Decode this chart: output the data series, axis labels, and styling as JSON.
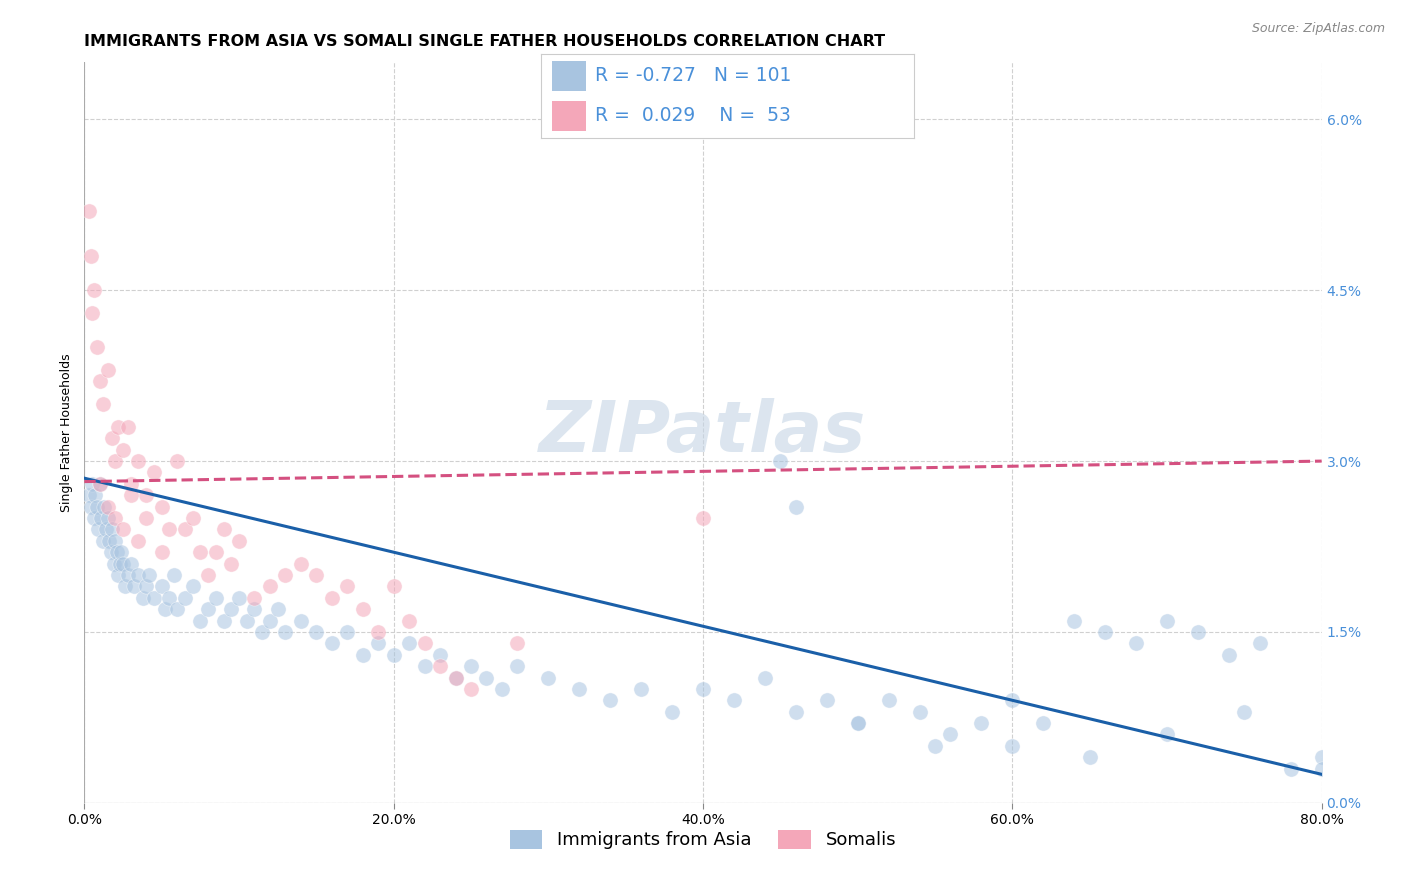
{
  "title": "IMMIGRANTS FROM ASIA VS SOMALI SINGLE FATHER HOUSEHOLDS CORRELATION CHART",
  "source": "Source: ZipAtlas.com",
  "ylabel_label": "Single Father Households",
  "legend_items": [
    {
      "label": "Immigrants from Asia",
      "color": "#a8c4e0",
      "R": "-0.727",
      "N": "101"
    },
    {
      "label": "Somalis",
      "color": "#f4a7b9",
      "R": "0.029",
      "N": "53"
    }
  ],
  "watermark": "ZIPatlas",
  "blue_scatter_x": [
    0.3,
    0.4,
    0.5,
    0.6,
    0.7,
    0.8,
    0.9,
    1.0,
    1.1,
    1.2,
    1.3,
    1.4,
    1.5,
    1.6,
    1.7,
    1.8,
    1.9,
    2.0,
    2.1,
    2.2,
    2.3,
    2.4,
    2.5,
    2.6,
    2.8,
    3.0,
    3.2,
    3.5,
    3.8,
    4.0,
    4.2,
    4.5,
    5.0,
    5.2,
    5.5,
    5.8,
    6.0,
    6.5,
    7.0,
    7.5,
    8.0,
    8.5,
    9.0,
    9.5,
    10.0,
    10.5,
    11.0,
    11.5,
    12.0,
    12.5,
    13.0,
    14.0,
    15.0,
    16.0,
    17.0,
    18.0,
    19.0,
    20.0,
    21.0,
    22.0,
    23.0,
    24.0,
    25.0,
    26.0,
    27.0,
    28.0,
    30.0,
    32.0,
    34.0,
    36.0,
    38.0,
    40.0,
    42.0,
    44.0,
    46.0,
    48.0,
    50.0,
    52.0,
    54.0,
    56.0,
    58.0,
    60.0,
    62.0,
    64.0,
    66.0,
    68.0,
    70.0,
    72.0,
    74.0,
    76.0,
    78.0,
    80.0,
    45.0,
    50.0,
    55.0,
    60.0,
    65.0,
    70.0,
    75.0,
    80.0,
    46.0
  ],
  "blue_scatter_y": [
    2.7,
    2.6,
    2.8,
    2.5,
    2.7,
    2.6,
    2.4,
    2.8,
    2.5,
    2.3,
    2.6,
    2.4,
    2.5,
    2.3,
    2.2,
    2.4,
    2.1,
    2.3,
    2.2,
    2.0,
    2.1,
    2.2,
    2.1,
    1.9,
    2.0,
    2.1,
    1.9,
    2.0,
    1.8,
    1.9,
    2.0,
    1.8,
    1.9,
    1.7,
    1.8,
    2.0,
    1.7,
    1.8,
    1.9,
    1.6,
    1.7,
    1.8,
    1.6,
    1.7,
    1.8,
    1.6,
    1.7,
    1.5,
    1.6,
    1.7,
    1.5,
    1.6,
    1.5,
    1.4,
    1.5,
    1.3,
    1.4,
    1.3,
    1.4,
    1.2,
    1.3,
    1.1,
    1.2,
    1.1,
    1.0,
    1.2,
    1.1,
    1.0,
    0.9,
    1.0,
    0.8,
    1.0,
    0.9,
    1.1,
    0.8,
    0.9,
    0.7,
    0.9,
    0.8,
    0.6,
    0.7,
    0.5,
    0.7,
    1.6,
    1.5,
    1.4,
    1.6,
    1.5,
    1.3,
    1.4,
    0.3,
    0.4,
    3.0,
    0.7,
    0.5,
    0.9,
    0.4,
    0.6,
    0.8,
    0.3,
    2.6
  ],
  "pink_scatter_x": [
    0.3,
    0.4,
    0.5,
    0.6,
    0.8,
    1.0,
    1.2,
    1.5,
    1.8,
    2.0,
    2.2,
    2.5,
    2.8,
    3.0,
    3.5,
    4.0,
    4.5,
    5.0,
    5.5,
    6.0,
    6.5,
    7.0,
    7.5,
    8.0,
    8.5,
    9.0,
    9.5,
    10.0,
    11.0,
    12.0,
    13.0,
    14.0,
    15.0,
    16.0,
    17.0,
    18.0,
    19.0,
    20.0,
    21.0,
    22.0,
    23.0,
    24.0,
    25.0,
    1.0,
    1.5,
    2.0,
    2.5,
    3.0,
    3.5,
    4.0,
    5.0,
    28.0,
    40.0
  ],
  "pink_scatter_y": [
    5.2,
    4.8,
    4.3,
    4.5,
    4.0,
    3.7,
    3.5,
    3.8,
    3.2,
    3.0,
    3.3,
    3.1,
    3.3,
    2.8,
    3.0,
    2.7,
    2.9,
    2.6,
    2.4,
    3.0,
    2.4,
    2.5,
    2.2,
    2.0,
    2.2,
    2.4,
    2.1,
    2.3,
    1.8,
    1.9,
    2.0,
    2.1,
    2.0,
    1.8,
    1.9,
    1.7,
    1.5,
    1.9,
    1.6,
    1.4,
    1.2,
    1.1,
    1.0,
    2.8,
    2.6,
    2.5,
    2.4,
    2.7,
    2.3,
    2.5,
    2.2,
    1.4,
    2.5
  ],
  "blue_line_x": [
    0.0,
    80.0
  ],
  "blue_line_y": [
    2.85,
    0.25
  ],
  "pink_line_x": [
    0.0,
    80.0
  ],
  "pink_line_y": [
    2.82,
    3.0
  ],
  "xlim": [
    0.0,
    80.0
  ],
  "ylim": [
    0.0,
    6.5
  ],
  "x_ticks": [
    0,
    20,
    40,
    60,
    80
  ],
  "y_ticks": [
    0.0,
    1.5,
    3.0,
    4.5,
    6.0
  ],
  "background_color": "#ffffff",
  "grid_color": "#d0d0d0",
  "scatter_blue_color": "#a8c4e0",
  "scatter_pink_color": "#f4a7b9",
  "line_blue_color": "#1a5fa8",
  "line_pink_color": "#d45080",
  "title_fontsize": 11.5,
  "axis_label_fontsize": 9,
  "tick_fontsize": 10,
  "right_tick_color": "#4a90d9",
  "scatter_size": 120,
  "scatter_alpha": 0.55,
  "line_linewidth": 2.2,
  "watermark_color": "#c5d5e5",
  "watermark_alpha": 0.6,
  "watermark_fontsize": 52
}
